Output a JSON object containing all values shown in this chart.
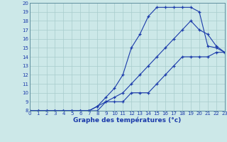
{
  "title": "Graphe des températures (°c)",
  "background_color": "#cce8e8",
  "grid_color": "#a8cccc",
  "line_color": "#1a3aaa",
  "x_hours": [
    0,
    1,
    2,
    3,
    4,
    5,
    6,
    7,
    8,
    9,
    10,
    11,
    12,
    13,
    14,
    15,
    16,
    17,
    18,
    19,
    20,
    21,
    22,
    23
  ],
  "line1": [
    8,
    8,
    8,
    8,
    8,
    8,
    8,
    8,
    8,
    9,
    9,
    9,
    10,
    10,
    10,
    11,
    12,
    13,
    14,
    14,
    14,
    14,
    14.5,
    14.5
  ],
  "line2": [
    8,
    8,
    8,
    8,
    8,
    8,
    8,
    8,
    8.5,
    9,
    9.5,
    10,
    11,
    12,
    13,
    14,
    15,
    16,
    17,
    18,
    17,
    16.5,
    15.2,
    14.5
  ],
  "line3": [
    8,
    8,
    8,
    8,
    8,
    8,
    8,
    8,
    8.5,
    9.5,
    10.5,
    12,
    15,
    16.5,
    18.5,
    19.5,
    19.5,
    19.5,
    19.5,
    19.5,
    19,
    15.2,
    15,
    14.5
  ],
  "ylim": [
    8,
    20
  ],
  "yticks": [
    8,
    9,
    10,
    11,
    12,
    13,
    14,
    15,
    16,
    17,
    18,
    19,
    20
  ],
  "xlim": [
    0,
    23
  ],
  "xticks": [
    0,
    1,
    2,
    3,
    4,
    5,
    6,
    7,
    8,
    9,
    10,
    11,
    12,
    13,
    14,
    15,
    16,
    17,
    18,
    19,
    20,
    21,
    22,
    23
  ],
  "marker": "+",
  "markersize": 3.5,
  "linewidth": 0.8,
  "tick_fontsize": 5.0,
  "xlabel_fontsize": 6.5
}
